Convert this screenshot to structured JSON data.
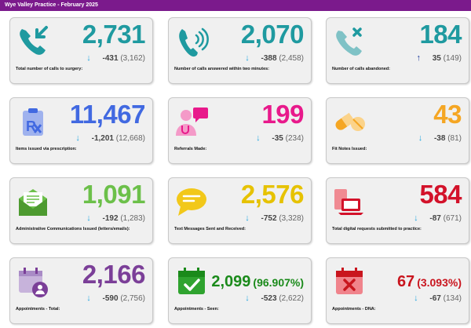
{
  "header": {
    "title": "Wye Valley Practice - February 2025"
  },
  "colors": {
    "teal": "#1f9aa0",
    "blue": "#4169e1",
    "pink": "#e8198b",
    "orange": "#f5a623",
    "green": "#6cc04a",
    "yellow": "#e6c200",
    "red": "#d3122a",
    "purple": "#7b3f98",
    "darkgreen": "#1a8a1a",
    "darkred": "#c9151e",
    "arrow_down": "#29a8e0",
    "arrow_up": "#1a3a9a"
  },
  "cards": [
    {
      "label": "Total number of calls to surgery:",
      "value": "2,731",
      "arrow": "↓",
      "delta": "-431",
      "prev": "(3,162)",
      "icon": "phone-incoming-icon"
    },
    {
      "label": "Number of calls answered within two minutes:",
      "value": "2,070",
      "arrow": "↓",
      "delta": "-388",
      "prev": "(2,458)",
      "icon": "phone-ringing-icon"
    },
    {
      "label": "Number of calls abandoned:",
      "value": "184",
      "arrow": "↑",
      "delta": "35",
      "prev": "(149)",
      "icon": "phone-missed-icon"
    },
    {
      "label": "Items issued via prescription:",
      "value": "11,467",
      "arrow": "↓",
      "delta": "-1,201",
      "prev": "(12,668)",
      "icon": "prescription-icon"
    },
    {
      "label": "Referrals Made:",
      "value": "199",
      "arrow": "↓",
      "delta": "-35",
      "prev": "(234)",
      "icon": "doctor-referral-icon"
    },
    {
      "label": "Fit Notes Issued:",
      "value": "43",
      "arrow": "↓",
      "delta": "-38",
      "prev": "(81)",
      "icon": "pills-icon"
    },
    {
      "label": "Administrative Communications Issued (letters/emails):",
      "value": "1,091",
      "arrow": "↓",
      "delta": "-192",
      "prev": "(1,283)",
      "icon": "envelope-icon"
    },
    {
      "label": "Text Messages Sent and Received:",
      "value": "2,576",
      "arrow": "↓",
      "delta": "-752",
      "prev": "(3,328)",
      "icon": "chat-bubble-icon"
    },
    {
      "label": "Total digital requests submitted to practice:",
      "value": "584",
      "arrow": "↓",
      "delta": "-87",
      "prev": "(671)",
      "icon": "devices-icon"
    },
    {
      "label": "Appointments - Total:",
      "value": "2,166",
      "arrow": "↓",
      "delta": "-590",
      "prev": "(2,756)",
      "icon": "calendar-user-icon"
    },
    {
      "label": "Appointments - Seen:",
      "value": "2,099",
      "pct": "(96.907%)",
      "arrow": "↓",
      "delta": "-523",
      "prev": "(2,622)",
      "icon": "calendar-check-icon"
    },
    {
      "label": "Appointments - DNA:",
      "value": "67",
      "pct": "(3.093%)",
      "arrow": "↓",
      "delta": "-67",
      "prev": "(134)",
      "icon": "calendar-x-icon"
    }
  ]
}
